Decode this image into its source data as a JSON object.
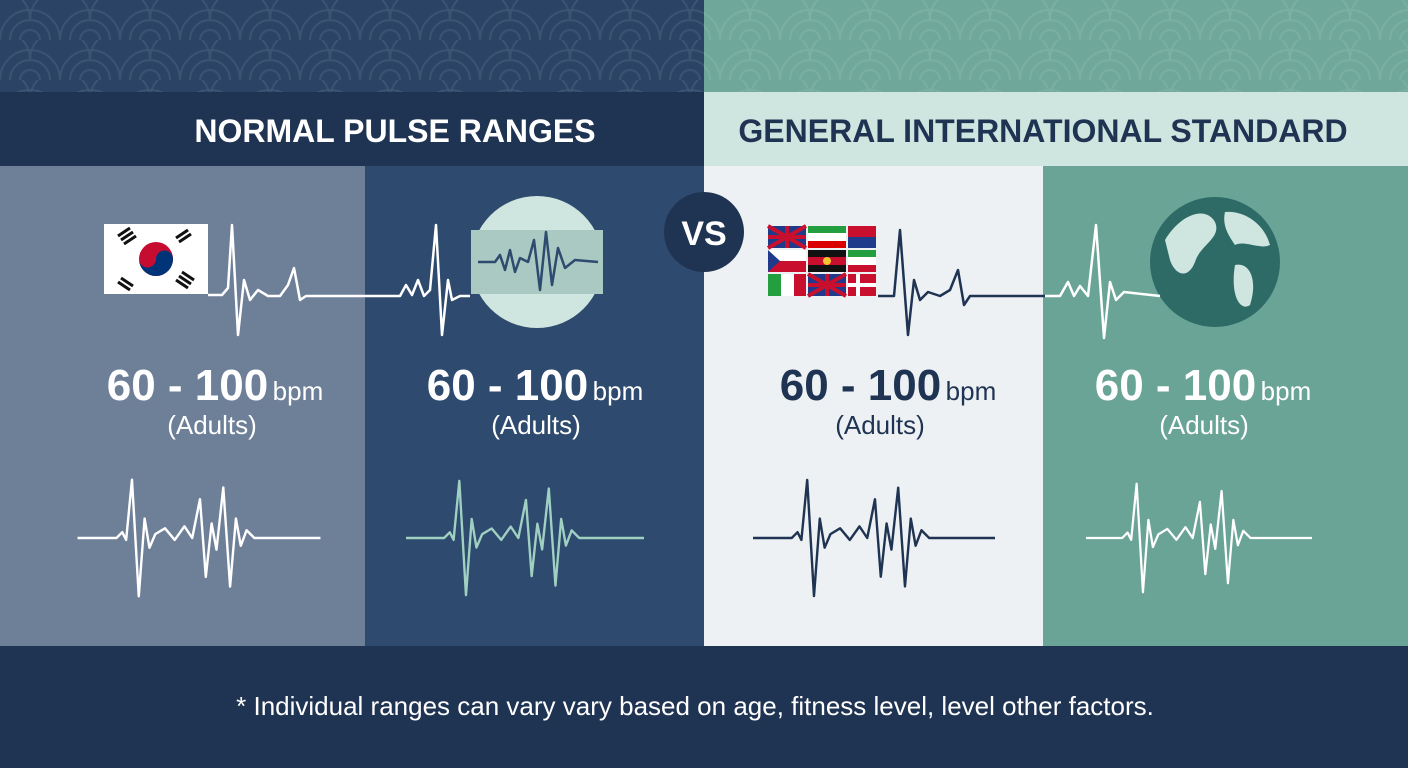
{
  "header": {
    "left_title": "NORMAL PULSE RANGES",
    "right_title": "GENERAL INTERNATIONAL STANDARD",
    "vs": "VS"
  },
  "panels": [
    {
      "range": "60 - 100",
      "unit": "bpm",
      "note": "(Adults)"
    },
    {
      "range": "60 - 100",
      "unit": "bpm",
      "note": "(Adults)"
    },
    {
      "range": "60 - 100",
      "unit": "bpm",
      "note": "(Adults)"
    },
    {
      "range": "60 - 100",
      "unit": "bpm",
      "note": "(Adults)"
    }
  ],
  "footnote": "* Individual ranges can vary vary based on age, fitness level, level other factors."
}
